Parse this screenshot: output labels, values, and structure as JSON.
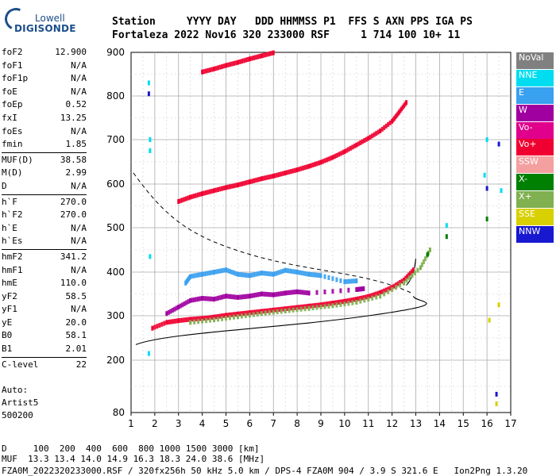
{
  "logo": {
    "line1": "Lowell",
    "line2": "DIGISONDE"
  },
  "header": {
    "row1": "Station     YYYY DAY   DDD HHMMSS P1  FFS S AXN PPS IGA PS",
    "row2": "Fortaleza 2022 Nov16 320 233000 RSF     1 714 100 10+ 11"
  },
  "params": [
    {
      "label": "foF2",
      "value": "12.900"
    },
    {
      "label": "foF1",
      "value": "N/A"
    },
    {
      "label": "foF1p",
      "value": "N/A"
    },
    {
      "label": "foE",
      "value": "N/A"
    },
    {
      "label": "foEp",
      "value": "0.52"
    },
    {
      "label": "fxI",
      "value": "13.25"
    },
    {
      "label": "foEs",
      "value": "N/A"
    },
    {
      "label": "fmin",
      "value": "1.85"
    },
    {
      "sep": true
    },
    {
      "label": "MUF(D)",
      "value": "38.58"
    },
    {
      "label": "M(D)",
      "value": "2.99"
    },
    {
      "label": "D",
      "value": "N/A"
    },
    {
      "sep": true
    },
    {
      "label": "h`F",
      "value": "270.0"
    },
    {
      "label": "h`F2",
      "value": "270.0"
    },
    {
      "label": "h`E",
      "value": "N/A"
    },
    {
      "label": "h`Es",
      "value": "N/A"
    },
    {
      "sep": true
    },
    {
      "label": "hmF2",
      "value": "341.2"
    },
    {
      "label": "hmF1",
      "value": "N/A"
    },
    {
      "label": "hmE",
      "value": "110.0"
    },
    {
      "label": "yF2",
      "value": "58.5"
    },
    {
      "label": "yF1",
      "value": "N/A"
    },
    {
      "label": "yE",
      "value": "20.0"
    },
    {
      "label": "B0",
      "value": "58.1"
    },
    {
      "label": "B1",
      "value": "2.01"
    },
    {
      "sep": true
    },
    {
      "label": "C-level",
      "value": "22"
    }
  ],
  "auto": {
    "line1": "Auto:",
    "line2": "Artist5",
    "line3": "500200"
  },
  "legend": [
    {
      "label": "NoVal",
      "color": "#808080"
    },
    {
      "label": "NNE",
      "color": "#00dcf0"
    },
    {
      "label": "E",
      "color": "#3aa0f0"
    },
    {
      "label": "W",
      "color": "#a000a0"
    },
    {
      "label": "Vo-",
      "color": "#e0008c"
    },
    {
      "label": "Vo+",
      "color": "#f00030"
    },
    {
      "label": "SSW",
      "color": "#f4a0a0"
    },
    {
      "label": "X-",
      "color": "#008000"
    },
    {
      "label": "X+",
      "color": "#80b050"
    },
    {
      "label": "SSE",
      "color": "#d8d000"
    },
    {
      "label": "NNW",
      "color": "#1818d0"
    }
  ],
  "footer": {
    "line1": "D     100  200  400  600  800 1000 1500 3000 [km]",
    "line2": "MUF  13.3 13.4 14.0 14.9 16.3 18.3 24.0 38.6 [MHz]",
    "line3": "FZA0M_2022320233000.RSF / 320fx256h 50 kHz 5.0 km / DPS-4 FZA0M 904 / 3.9 S 321.6 E   Ion2Png 1.3.20"
  },
  "chart_data": {
    "type": "scatter",
    "title": "",
    "xlabel": "",
    "ylabel": "",
    "xlim": [
      1,
      17
    ],
    "ylim": [
      80,
      900
    ],
    "x_ticks": [
      1,
      2,
      3,
      4,
      5,
      6,
      7,
      8,
      9,
      10,
      11,
      12,
      13,
      14,
      15,
      16,
      17
    ],
    "y_ticks": [
      80,
      200,
      300,
      400,
      500,
      600,
      700,
      800,
      900
    ],
    "grid": true,
    "series": [
      {
        "name": "Vo+",
        "color": "#f00030",
        "points": [
          [
            1.9,
            272
          ],
          [
            2.5,
            285
          ],
          [
            3.0,
            289
          ],
          [
            3.5,
            292
          ],
          [
            4.0,
            294
          ],
          [
            4.5,
            297
          ],
          [
            5.0,
            301
          ],
          [
            5.5,
            304
          ],
          [
            6.0,
            307
          ],
          [
            6.5,
            310
          ],
          [
            7.0,
            313
          ],
          [
            7.5,
            316
          ],
          [
            8.0,
            319
          ],
          [
            8.5,
            322
          ],
          [
            9.0,
            325
          ],
          [
            9.5,
            329
          ],
          [
            10.0,
            333
          ],
          [
            10.5,
            338
          ],
          [
            11.0,
            344
          ],
          [
            11.5,
            353
          ],
          [
            12.0,
            365
          ],
          [
            12.5,
            382
          ],
          [
            12.9,
            405
          ]
        ]
      },
      {
        "name": "Vo+",
        "color": "#f00030",
        "points": [
          [
            3.0,
            560
          ],
          [
            3.5,
            570
          ],
          [
            4.0,
            578
          ],
          [
            4.5,
            585
          ],
          [
            5.0,
            592
          ],
          [
            5.5,
            598
          ],
          [
            6.0,
            605
          ],
          [
            6.5,
            612
          ],
          [
            7.0,
            618
          ],
          [
            7.5,
            625
          ],
          [
            8.0,
            632
          ],
          [
            8.5,
            640
          ],
          [
            9.0,
            649
          ],
          [
            9.5,
            660
          ],
          [
            10.0,
            673
          ],
          [
            10.5,
            688
          ],
          [
            11.0,
            703
          ],
          [
            11.5,
            720
          ],
          [
            12.0,
            742
          ],
          [
            12.3,
            763
          ],
          [
            12.6,
            785
          ]
        ]
      },
      {
        "name": "Vo+",
        "color": "#f00030",
        "points": [
          [
            4.0,
            855
          ],
          [
            4.5,
            862
          ],
          [
            5.0,
            870
          ],
          [
            5.5,
            877
          ],
          [
            6.0,
            885
          ],
          [
            6.5,
            892
          ],
          [
            7.0,
            899
          ]
        ]
      },
      {
        "name": "W",
        "color": "#a000a0",
        "points": [
          [
            2.5,
            305
          ],
          [
            3.0,
            320
          ],
          [
            3.5,
            335
          ],
          [
            4.0,
            340
          ],
          [
            4.5,
            338
          ],
          [
            5.0,
            345
          ],
          [
            5.5,
            342
          ],
          [
            6.0,
            345
          ],
          [
            6.5,
            350
          ],
          [
            7.0,
            348
          ],
          [
            7.5,
            352
          ],
          [
            8.0,
            355
          ],
          [
            8.5,
            352
          ],
          [
            10.5,
            360
          ],
          [
            10.8,
            362
          ]
        ]
      },
      {
        "name": "E",
        "color": "#3aa0f0",
        "points": [
          [
            3.3,
            375
          ],
          [
            3.5,
            390
          ],
          [
            4.0,
            395
          ],
          [
            4.5,
            400
          ],
          [
            5.0,
            405
          ],
          [
            5.5,
            395
          ],
          [
            6.0,
            392
          ],
          [
            6.5,
            398
          ],
          [
            7.0,
            395
          ],
          [
            7.5,
            404
          ],
          [
            8.0,
            400
          ],
          [
            8.5,
            395
          ],
          [
            9.0,
            392
          ],
          [
            10.0,
            378
          ],
          [
            10.5,
            380
          ]
        ]
      },
      {
        "name": "X+",
        "color": "#80b050",
        "points": [
          [
            3.5,
            285
          ],
          [
            4.5,
            291
          ],
          [
            5.5,
            298
          ],
          [
            6.5,
            305
          ],
          [
            7.5,
            311
          ],
          [
            8.5,
            317
          ],
          [
            9.5,
            323
          ],
          [
            10.5,
            331
          ],
          [
            11.5,
            345
          ],
          [
            12.5,
            375
          ],
          [
            13.2,
            410
          ],
          [
            13.6,
            450
          ]
        ]
      },
      {
        "name": "NNW",
        "color": "#1818d0",
        "points": [
          [
            1.75,
            805
          ],
          [
            16.0,
            590
          ],
          [
            16.5,
            690
          ],
          [
            16.4,
            122
          ]
        ]
      },
      {
        "name": "NNE",
        "color": "#00dcf0",
        "points": [
          [
            1.75,
            830
          ],
          [
            1.8,
            700
          ],
          [
            1.8,
            675
          ],
          [
            1.8,
            435
          ],
          [
            1.75,
            215
          ],
          [
            14.3,
            505
          ],
          [
            15.9,
            620
          ],
          [
            16.0,
            700
          ],
          [
            16.6,
            585
          ]
        ]
      },
      {
        "name": "SSE",
        "color": "#d8d000",
        "points": [
          [
            16.5,
            325
          ],
          [
            16.1,
            290
          ],
          [
            16.4,
            100
          ]
        ]
      },
      {
        "name": "X-",
        "color": "#008000",
        "points": [
          [
            16.0,
            520
          ],
          [
            14.3,
            480
          ],
          [
            13.5,
            440
          ]
        ]
      }
    ]
  }
}
